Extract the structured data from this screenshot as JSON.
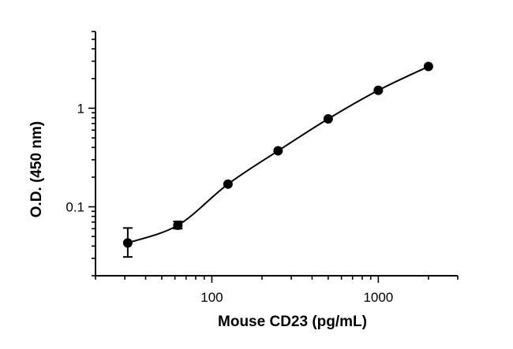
{
  "chart_data": {
    "type": "scatter",
    "title": "",
    "xlabel": "Mouse CD23 (pg/mL)",
    "ylabel": "O.D. (450 nm)",
    "xscale": "log",
    "yscale": "log",
    "xlim": [
      20,
      3000
    ],
    "ylim": [
      0.02,
      6
    ],
    "xticks": [
      {
        "value": 100,
        "label": "100"
      },
      {
        "value": 1000,
        "label": "1000"
      }
    ],
    "yticks": [
      {
        "value": 0.1,
        "label": "0.1"
      },
      {
        "value": 1,
        "label": "1"
      }
    ],
    "grid": false,
    "series": [
      {
        "x": [
          31.25,
          62.5,
          125,
          250,
          500,
          1000,
          2000
        ],
        "y": [
          0.043,
          0.065,
          0.17,
          0.37,
          0.78,
          1.52,
          2.65
        ],
        "error_low": [
          0.031,
          0.06,
          0.17,
          0.37,
          0.78,
          1.52,
          2.65
        ],
        "error_high": [
          0.061,
          0.071,
          0.17,
          0.37,
          0.78,
          1.52,
          2.65
        ],
        "fit": "smooth-curve"
      }
    ],
    "colors": {
      "marker": "#000000",
      "line": "#000000",
      "axis": "#000000"
    }
  }
}
